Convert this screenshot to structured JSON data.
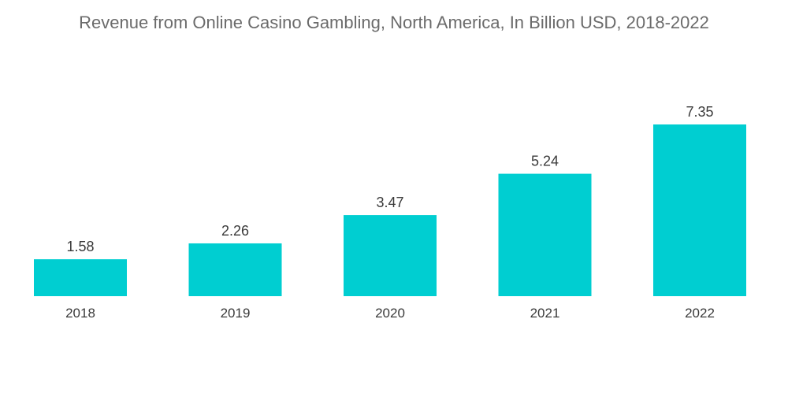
{
  "colors": {
    "bar": "#00CED1",
    "title": "#6b6b6b",
    "text": "#3a3a3a"
  },
  "chart_data": {
    "type": "bar",
    "title": "Revenue from Online Casino Gambling, North America, In Billion USD, 2018-2022",
    "xlabel": "",
    "ylabel": "",
    "categories": [
      "2018",
      "2019",
      "2020",
      "2021",
      "2022"
    ],
    "values": [
      1.58,
      2.26,
      3.47,
      5.24,
      7.35
    ],
    "data_labels": [
      "1.58",
      "2.26",
      "3.47",
      "5.24",
      "7.35"
    ],
    "ylim": [
      0,
      7.35
    ],
    "grid": false,
    "legend": "none"
  }
}
